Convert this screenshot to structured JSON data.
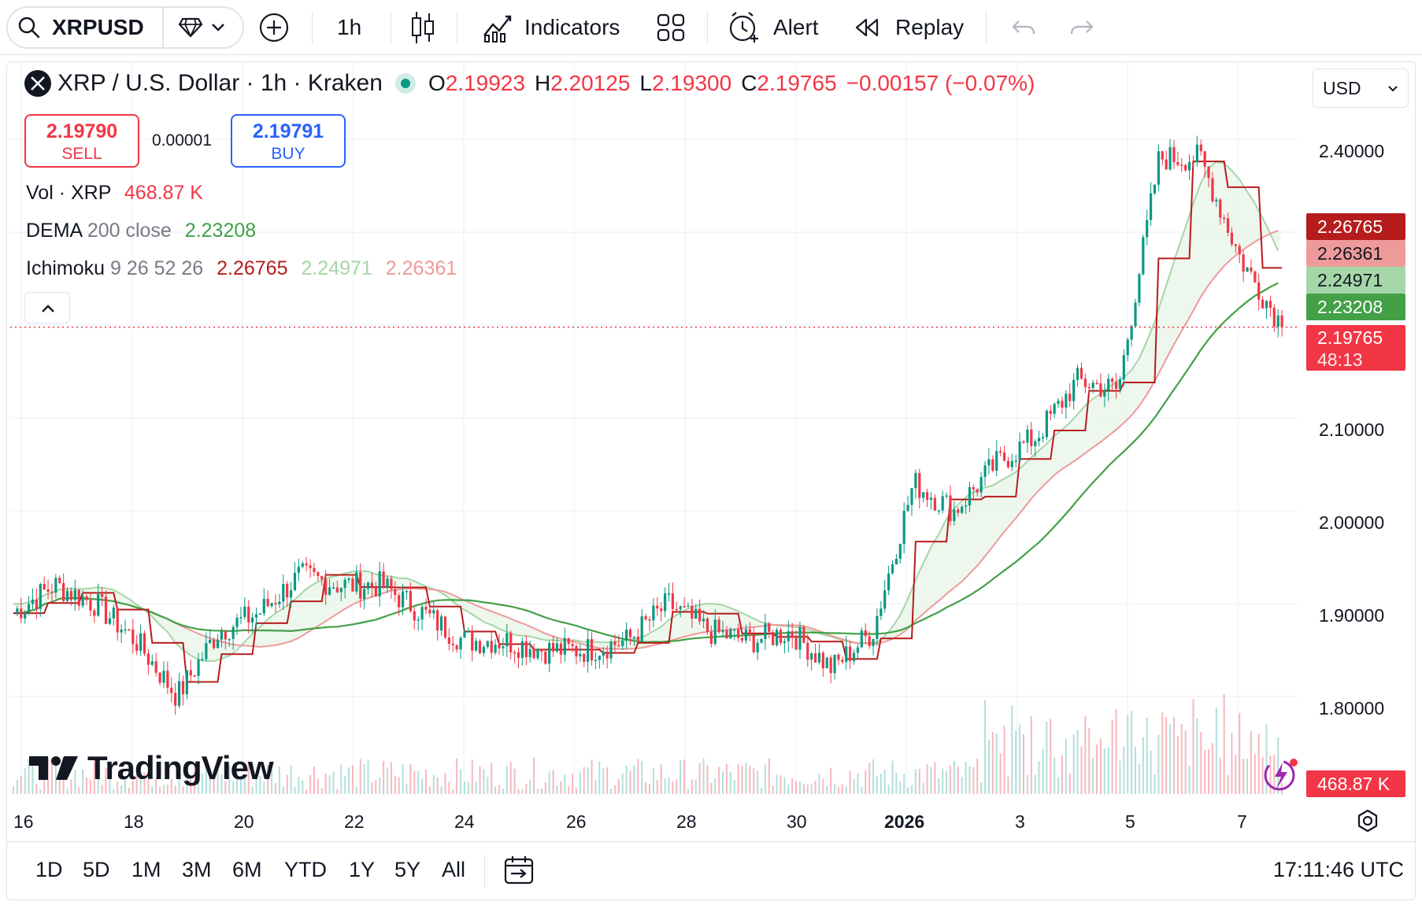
{
  "toolbar": {
    "symbol": "XRPUSD",
    "interval": "1h",
    "indicators_label": "Indicators",
    "alert_label": "Alert",
    "replay_label": "Replay"
  },
  "legend": {
    "title": "XRP / U.S. Dollar · 1h · Kraken",
    "open_key": "O",
    "open": "2.19923",
    "high_key": "H",
    "high": "2.20125",
    "low_key": "L",
    "low": "2.19300",
    "close_key": "C",
    "close": "2.19765",
    "change": "−0.00157 (−0.07%)",
    "sell_price": "2.19790",
    "sell_label": "SELL",
    "spread": "0.00001",
    "buy_price": "2.19791",
    "buy_label": "BUY",
    "vol_name": "Vol · XRP",
    "vol_value": "468.87 K",
    "dema_name": "DEMA",
    "dema_params": "200 close",
    "dema_value": "2.23208",
    "ichi_name": "Ichimoku",
    "ichi_params": "9 26 52 26",
    "ichi_v1": "2.26765",
    "ichi_v2": "2.24971",
    "ichi_v3": "2.26361"
  },
  "currency_select": "USD",
  "price_axis": [
    "2.40000",
    "2.10000",
    "2.00000",
    "1.90000",
    "1.80000"
  ],
  "price_tags": {
    "ichi_conv": "2.26765",
    "ichi_span_b": "2.26361",
    "ichi_span_a": "2.24971",
    "dema": "2.23208",
    "last_price": "2.19765",
    "countdown": "48:13",
    "volume": "468.87 K"
  },
  "time_axis": [
    "16",
    "18",
    "20",
    "22",
    "24",
    "26",
    "28",
    "30",
    "2026",
    "3",
    "5",
    "7"
  ],
  "brand": "TradingView",
  "ranges": [
    "1D",
    "5D",
    "1M",
    "3M",
    "6M",
    "YTD",
    "1Y",
    "5Y",
    "All"
  ],
  "clock": "17:11:46 UTC",
  "colors": {
    "up": "#089981",
    "down": "#f23645",
    "dema": "#43a047",
    "ichi_conv": "#b71c1c",
    "ichi_span_a": "#a5d6a7",
    "ichi_span_b": "#ef9a9a",
    "buy": "#2962ff"
  },
  "chart_data": {
    "type": "candlestick",
    "symbol": "XRPUSD",
    "interval": "1h",
    "exchange": "Kraken",
    "y_axis_ticks": [
      1.8,
      1.9,
      2.0,
      2.1,
      2.4
    ],
    "x_axis_ticks": [
      "16",
      "18",
      "20",
      "22",
      "24",
      "26",
      "28",
      "30",
      "2026",
      "3",
      "5",
      "7"
    ],
    "last_bar": {
      "open": 2.19923,
      "high": 2.20125,
      "low": 2.193,
      "close": 2.19765,
      "change": -0.00157,
      "change_pct": -0.07
    },
    "close_path": [
      {
        "x": "16",
        "y": 1.89
      },
      {
        "x": "17",
        "y": 1.92
      },
      {
        "x": "18",
        "y": 1.9
      },
      {
        "x": "18.5",
        "y": 1.86
      },
      {
        "x": "19",
        "y": 1.8
      },
      {
        "x": "19.5",
        "y": 1.87
      },
      {
        "x": "20",
        "y": 1.89
      },
      {
        "x": "20.5",
        "y": 1.93
      },
      {
        "x": "21",
        "y": 1.92
      },
      {
        "x": "22",
        "y": 1.92
      },
      {
        "x": "23",
        "y": 1.89
      },
      {
        "x": "24",
        "y": 1.86
      },
      {
        "x": "25",
        "y": 1.86
      },
      {
        "x": "26",
        "y": 1.85
      },
      {
        "x": "27",
        "y": 1.85
      },
      {
        "x": "28",
        "y": 1.86
      },
      {
        "x": "29",
        "y": 1.9
      },
      {
        "x": "29.5",
        "y": 1.87
      },
      {
        "x": "30",
        "y": 1.86
      },
      {
        "x": "31",
        "y": 1.87
      },
      {
        "x": "2026",
        "y": 1.83
      },
      {
        "x": "2",
        "y": 1.87
      },
      {
        "x": "3",
        "y": 2.03
      },
      {
        "x": "3.5",
        "y": 2.0
      },
      {
        "x": "4",
        "y": 2.05
      },
      {
        "x": "4.5",
        "y": 2.08
      },
      {
        "x": "5",
        "y": 2.14
      },
      {
        "x": "5.5",
        "y": 2.13
      },
      {
        "x": "6",
        "y": 2.38
      },
      {
        "x": "6.5",
        "y": 2.38
      },
      {
        "x": "7",
        "y": 2.27
      },
      {
        "x": "7.5",
        "y": 2.2
      }
    ],
    "dema_200": 2.23208,
    "ichimoku": {
      "conversion": 2.26765,
      "span_a": 2.24971,
      "span_b": 2.26361
    },
    "volume_last": "468.87 K"
  }
}
